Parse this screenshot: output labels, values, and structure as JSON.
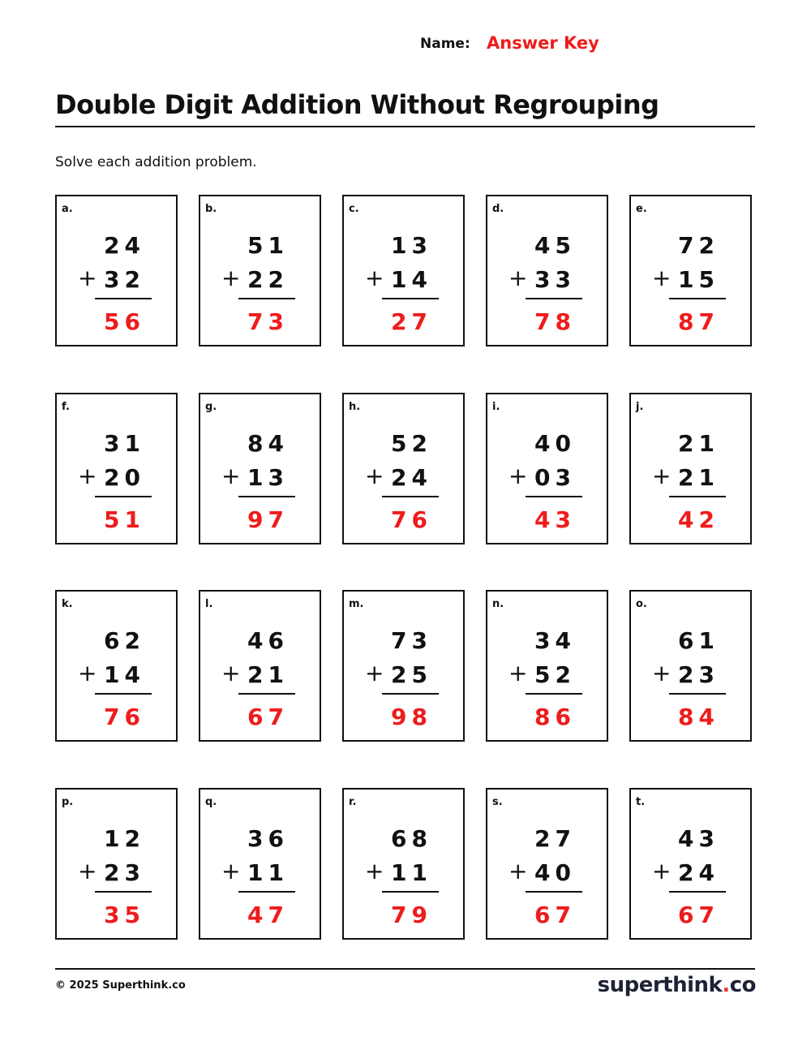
{
  "header": {
    "name_label": "Name:",
    "name_value": "Answer Key"
  },
  "title": "Double Digit Addition Without Regrouping",
  "instructions": "Solve each addition problem.",
  "operator": "+",
  "problems": [
    {
      "label": "a.",
      "top": "24",
      "bottom": "32",
      "answer": "56"
    },
    {
      "label": "b.",
      "top": "51",
      "bottom": "22",
      "answer": "73"
    },
    {
      "label": "c.",
      "top": "13",
      "bottom": "14",
      "answer": "27"
    },
    {
      "label": "d.",
      "top": "45",
      "bottom": "33",
      "answer": "78"
    },
    {
      "label": "e.",
      "top": "72",
      "bottom": "15",
      "answer": "87"
    },
    {
      "label": "f.",
      "top": "31",
      "bottom": "20",
      "answer": "51"
    },
    {
      "label": "g.",
      "top": "84",
      "bottom": "13",
      "answer": "97"
    },
    {
      "label": "h.",
      "top": "52",
      "bottom": "24",
      "answer": "76"
    },
    {
      "label": "i.",
      "top": "40",
      "bottom": "03",
      "answer": "43"
    },
    {
      "label": "j.",
      "top": "21",
      "bottom": "21",
      "answer": "42"
    },
    {
      "label": "k.",
      "top": "62",
      "bottom": "14",
      "answer": "76"
    },
    {
      "label": "l.",
      "top": "46",
      "bottom": "21",
      "answer": "67"
    },
    {
      "label": "m.",
      "top": "73",
      "bottom": "25",
      "answer": "98"
    },
    {
      "label": "n.",
      "top": "34",
      "bottom": "52",
      "answer": "86"
    },
    {
      "label": "o.",
      "top": "61",
      "bottom": "23",
      "answer": "84"
    },
    {
      "label": "p.",
      "top": "12",
      "bottom": "23",
      "answer": "35"
    },
    {
      "label": "q.",
      "top": "36",
      "bottom": "11",
      "answer": "47"
    },
    {
      "label": "r.",
      "top": "68",
      "bottom": "11",
      "answer": "79"
    },
    {
      "label": "s.",
      "top": "27",
      "bottom": "40",
      "answer": "67"
    },
    {
      "label": "t.",
      "top": "43",
      "bottom": "24",
      "answer": "67"
    }
  ],
  "footer": {
    "copyright": "© 2025 Superthink.co",
    "logo_main": "superthink",
    "logo_dot": ".",
    "logo_tld": "co"
  },
  "colors": {
    "answer": "#ee1c1c",
    "logo": "#1e2235"
  }
}
